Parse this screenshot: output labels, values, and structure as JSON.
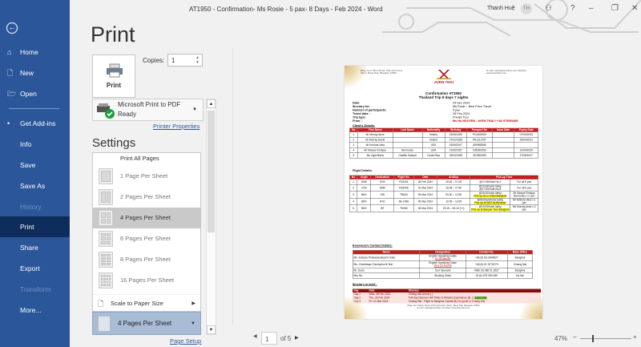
{
  "window": {
    "title": "AT1950 - Confirmation- Ms Rosie - 5 pax- 8 Days - Feb 2024  -  Word",
    "user": "Thanh Huệ",
    "avatar": "TH",
    "help": "?",
    "minimize": "–",
    "restore": "❐",
    "close": "✕"
  },
  "sidebar": {
    "back": "←",
    "items": [
      {
        "label": "Home",
        "icon": "⌂"
      },
      {
        "label": "New",
        "icon": "🗋"
      },
      {
        "label": "Open",
        "icon": "🗁"
      },
      {
        "label": "Get Add-ins",
        "icon": "•"
      },
      {
        "label": "Info"
      },
      {
        "label": "Save"
      },
      {
        "label": "Save As"
      },
      {
        "label": "History",
        "disabled": true
      },
      {
        "label": "Print",
        "active": true
      },
      {
        "label": "Share"
      },
      {
        "label": "Export"
      },
      {
        "label": "Transform",
        "disabled": true
      },
      {
        "label": "More..."
      }
    ]
  },
  "print": {
    "title": "Print",
    "button": "Print",
    "copies_label": "Copies:",
    "copies": "1",
    "printer": {
      "name": "Microsoft Print to PDF",
      "status": "Ready"
    },
    "printer_properties": "Printer Properties",
    "settings": "Settings",
    "menu": {
      "header": "Print All Pages",
      "items": [
        "1 Page Per Sheet",
        "2 Pages Per Sheet",
        "4 Pages Per Sheet",
        "6 Pages Per Sheet",
        "8 Pages Per Sheet",
        "16 Pages Per Sheet"
      ],
      "selected": "4 Pages Per Sheet",
      "scale": "Scale to Paper Size"
    },
    "pages_per_sheet": "4 Pages Per Sheet",
    "page_setup": "Page Setup"
  },
  "nav": {
    "page": "1",
    "of": "of 5",
    "zoom": "47%",
    "zoom_minus": "−",
    "zoom_plus": "+",
    "zoom_level_percent": 47
  },
  "document": {
    "address": "Bldg. No.2 Silom Road, 10th-14th Floor Silom, Bang Rak, Bangkok 10500",
    "contact": "E-mail: sales@aventhai.com  Website: www.aventhai.com",
    "logo": "AVEN THAI",
    "title1": "Confirmation AT1950",
    "title2": "Thailand Trip 8 days 7 nights",
    "info": [
      [
        "Date:",
        "29 Dec 2023"
      ],
      [
        "Itinerary  for:",
        "Ms Rosie – Best Price Travel"
      ],
      [
        "Number of participants:",
        "5 pax"
      ],
      [
        "Travel date :",
        "28 Feb 2024"
      ],
      [
        "Trip type:",
        "Private Tour"
      ],
      [
        "From :",
        "Ms Ha NGUYEN  -  AVEN THAI // +84 975059489"
      ]
    ],
    "clients_title": "Client's Details:",
    "clients_headers": [
      "No",
      "First Name",
      "Last Name",
      "Nationality",
      "Birthday",
      "Passport No",
      "Issue Date",
      "Expiry Date"
    ],
    "clients": [
      [
        "1",
        "Mr Murray Anne",
        "",
        "Ireland",
        "23/05/1959",
        "PC0809029",
        "",
        "07/09/2033"
      ],
      [
        "2",
        "Mr Murray David",
        "",
        "Ireland",
        "27/02/1958",
        "PA1312757",
        "",
        "25/04/2031"
      ],
      [
        "3",
        "Mr Krishna Vara",
        "",
        "USA",
        "15/06/1947",
        "659998556",
        "",
        ""
      ],
      [
        "4",
        "Mr Manuel Enrique",
        "Bermudez",
        "USA",
        "21/06/1957",
        "535990350",
        "",
        "10/09/2025"
      ],
      [
        "5",
        "Ms Ligia Maria",
        "Castillo Salazar",
        "Costa Rica",
        "25/04/1958",
        "302590459",
        "",
        "27/06/2027"
      ]
    ],
    "flights_title": "Flight Details:",
    "flights_headers": [
      "No",
      "Origin",
      "Destination",
      "Flight No.",
      "Date",
      "Arr/Dep",
      "Pick-up Time",
      ""
    ],
    "flights": [
      [
        "1",
        "DMK",
        "CNX",
        "FD3431",
        "28 Feb 2024",
        "15:45 – 17:05",
        "@17:05/Gate No.2",
        "",
        "For all 5 pax"
      ],
      [
        "2",
        "CNX",
        "DMK",
        "FD3446",
        "01 Mar 2024",
        "16:35 – 17:50",
        "@15:30/hotel lobby @17:50/Gate No.5",
        "",
        "For all 5 pax"
      ],
      [
        "3",
        "BKK",
        "SIN",
        "TR609",
        "05 Mar 2024",
        "09:30 – 12:55",
        "@05:30/hotel lobby",
        "Pick up at Le D'Bel Bangkok",
        "Mr Manuel Enrique Bermudez x 2 pax"
      ],
      [
        "4",
        "BKK",
        "HYD",
        "6E-1068",
        "06 Mar 2024",
        "10:05 – 12:05",
        "@06:00am/hotel lobby",
        "Pick up at W22 by Burasari",
        "Mr Krishna Vara x 1 pax"
      ],
      [
        "5",
        "BKK",
        "IST",
        "TK069",
        "06 Mar 2024",
        "23:15 – 06:10 (+1)",
        "@19:00/hotel lobby",
        "Pick up at Banyan Tree Bangkok",
        "Ms Murray Anne x 2 pax"
      ]
    ],
    "emergency_title": "Emergency Contact Details:",
    "emergency_headers": [
      "Name",
      "Designation",
      "Contact No.",
      "Base Office"
    ],
    "emergency": [
      [
        "Ms. Ketsara Phokaewsuksa/ K Kate",
        "English Speaking Guide",
        "01-03 Mar'24",
        "+66 (0) 83-3404627",
        "Bangkok"
      ],
      [
        "Ms. Chanidapa Chuesphun/K Nat",
        "English Speaking Guide",
        "28 & 29 Feb'24",
        "+66 (0) 87-5770079",
        "Chiang Mai"
      ],
      [
        "Mr. Dean",
        "Tour Operator",
        "",
        "0066 (0) 986 51.2557",
        "Bangkok"
      ],
      [
        "Mrs.Ha",
        "Booking Sales",
        "",
        "00 84 975 059 489",
        "Ha Noi"
      ]
    ],
    "itinerary_title": "Itinerary in brief :",
    "itinerary_headers": [
      "Day",
      "Date",
      "Itinerary"
    ],
    "itinerary": [
      [
        "Day 1",
        "Wed, 28 Feb 2024",
        "Chiang Mai Arrival (-)",
        "",
        ""
      ],
      [
        "Day 2",
        "Thu, 29 Feb 2024",
        "Full-day Discover Hill Tribes & Artisans Experience (B, L)",
        "3 pax only",
        ""
      ],
      [
        "Day 3",
        "Fri, 01 Mar 2024",
        "Chiang Mai - Flight to Bangkok Capital (B)",
        "",
        "No guide in Chiang Mai"
      ]
    ],
    "footer1": "Bldg. No.2 Silom Road, 10th-14th Floor Silom, Bang Rak, Bangkok 10500",
    "footer2": "E-mail: sales@aventhai.com   Web: www.aventhai.com"
  },
  "colors": {
    "sidebar": "#2b579a",
    "sidebar_active": "#0f2d5c",
    "table_header": "#c41e1e",
    "highlight": "#ffff00"
  }
}
